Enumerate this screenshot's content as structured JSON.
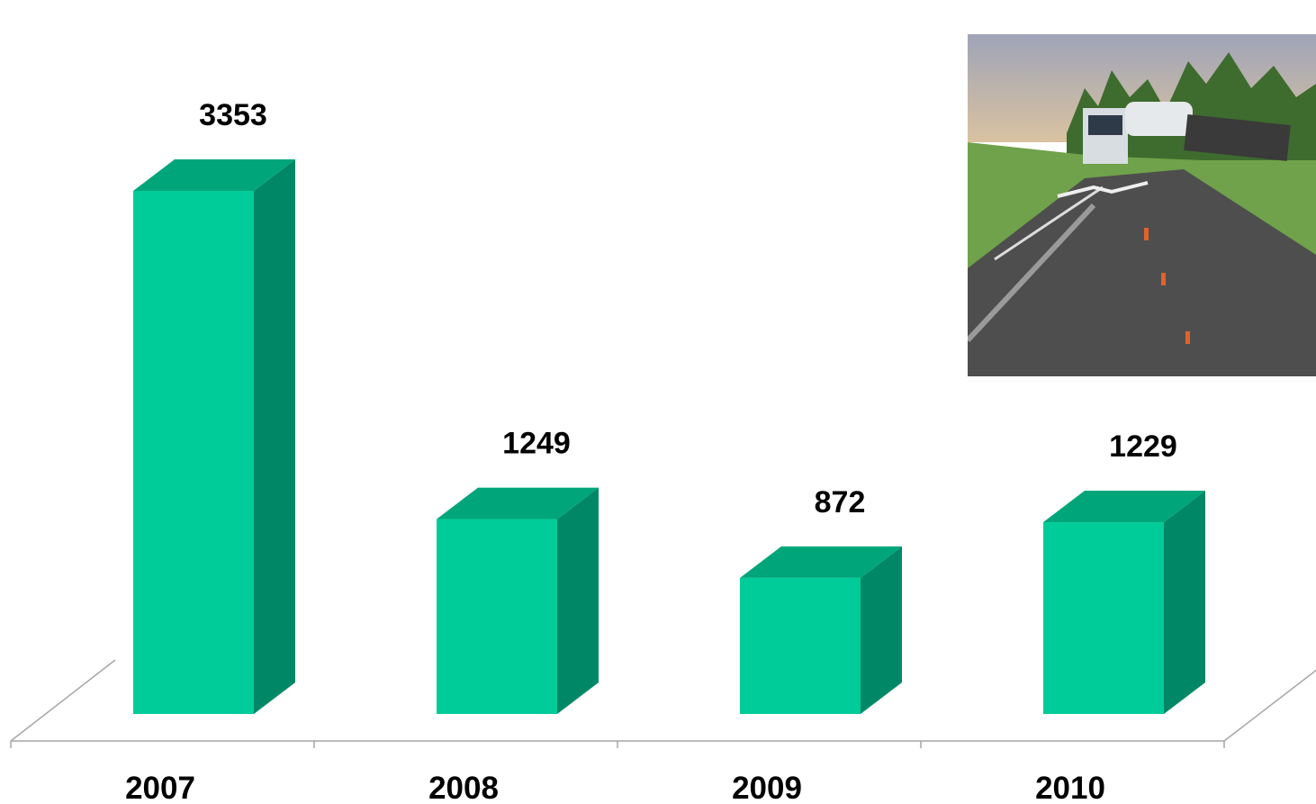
{
  "chart_data": {
    "type": "bar",
    "style": "3d-column",
    "categories": [
      "2007",
      "2008",
      "2009",
      "2010"
    ],
    "values": [
      3353,
      1249,
      872,
      1229
    ],
    "data_labels": [
      "3353",
      "1249",
      "872",
      "1229"
    ],
    "title": "",
    "xlabel": "",
    "ylabel": "",
    "ylim": [
      0,
      3353
    ],
    "grid": false,
    "legend": "none",
    "colors": {
      "front": "#00CC99",
      "side": "#008866",
      "top": "#00A67A",
      "axis": "#A6A6A6"
    }
  },
  "photo": {
    "description_icon": "accident-photo",
    "colors": {
      "sky": "#C9B9A0",
      "trees": "#3E6B2E",
      "grass": "#6FA24A",
      "road": "#4E4E4E"
    }
  }
}
